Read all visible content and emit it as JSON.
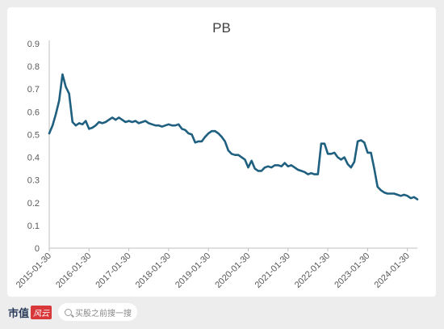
{
  "chart_data": {
    "type": "line",
    "title": "PB",
    "xlabel": "",
    "ylabel": "",
    "ylim": [
      0,
      0.9
    ],
    "yticks": [
      "0",
      "0.1",
      "0.2",
      "0.3",
      "0.4",
      "0.5",
      "0.6",
      "0.7",
      "0.8",
      "0.9"
    ],
    "xticks": [
      "2015-01-30",
      "2016-01-30",
      "2017-01-30",
      "2018-01-30",
      "2019-01-30",
      "2020-01-30",
      "2021-01-30",
      "2022-01-30",
      "2023-01-30",
      "2024-01-30"
    ],
    "grid": false,
    "line_color": "#1f5f7f",
    "series": [
      {
        "name": "",
        "values": [
          0.505,
          0.54,
          0.59,
          0.65,
          0.765,
          0.71,
          0.68,
          0.555,
          0.54,
          0.55,
          0.545,
          0.56,
          0.525,
          0.53,
          0.54,
          0.555,
          0.55,
          0.555,
          0.565,
          0.575,
          0.565,
          0.575,
          0.565,
          0.555,
          0.56,
          0.555,
          0.56,
          0.55,
          0.555,
          0.56,
          0.55,
          0.545,
          0.54,
          0.54,
          0.535,
          0.54,
          0.545,
          0.54,
          0.54,
          0.545,
          0.525,
          0.52,
          0.505,
          0.5,
          0.465,
          0.47,
          0.47,
          0.49,
          0.505,
          0.515,
          0.515,
          0.505,
          0.49,
          0.47,
          0.43,
          0.415,
          0.41,
          0.41,
          0.4,
          0.39,
          0.355,
          0.385,
          0.35,
          0.34,
          0.34,
          0.355,
          0.36,
          0.355,
          0.365,
          0.365,
          0.36,
          0.375,
          0.36,
          0.365,
          0.355,
          0.345,
          0.34,
          0.335,
          0.325,
          0.33,
          0.325,
          0.325,
          0.46,
          0.46,
          0.415,
          0.415,
          0.42,
          0.4,
          0.39,
          0.4,
          0.37,
          0.355,
          0.38,
          0.47,
          0.475,
          0.465,
          0.42,
          0.42,
          0.35,
          0.27,
          0.255,
          0.245,
          0.24,
          0.24,
          0.24,
          0.235,
          0.23,
          0.235,
          0.23,
          0.22,
          0.225,
          0.215
        ]
      }
    ]
  },
  "footer": {
    "brand_text": "市值",
    "brand_badge": "风云",
    "search_placeholder": "买股之前搜一搜"
  }
}
